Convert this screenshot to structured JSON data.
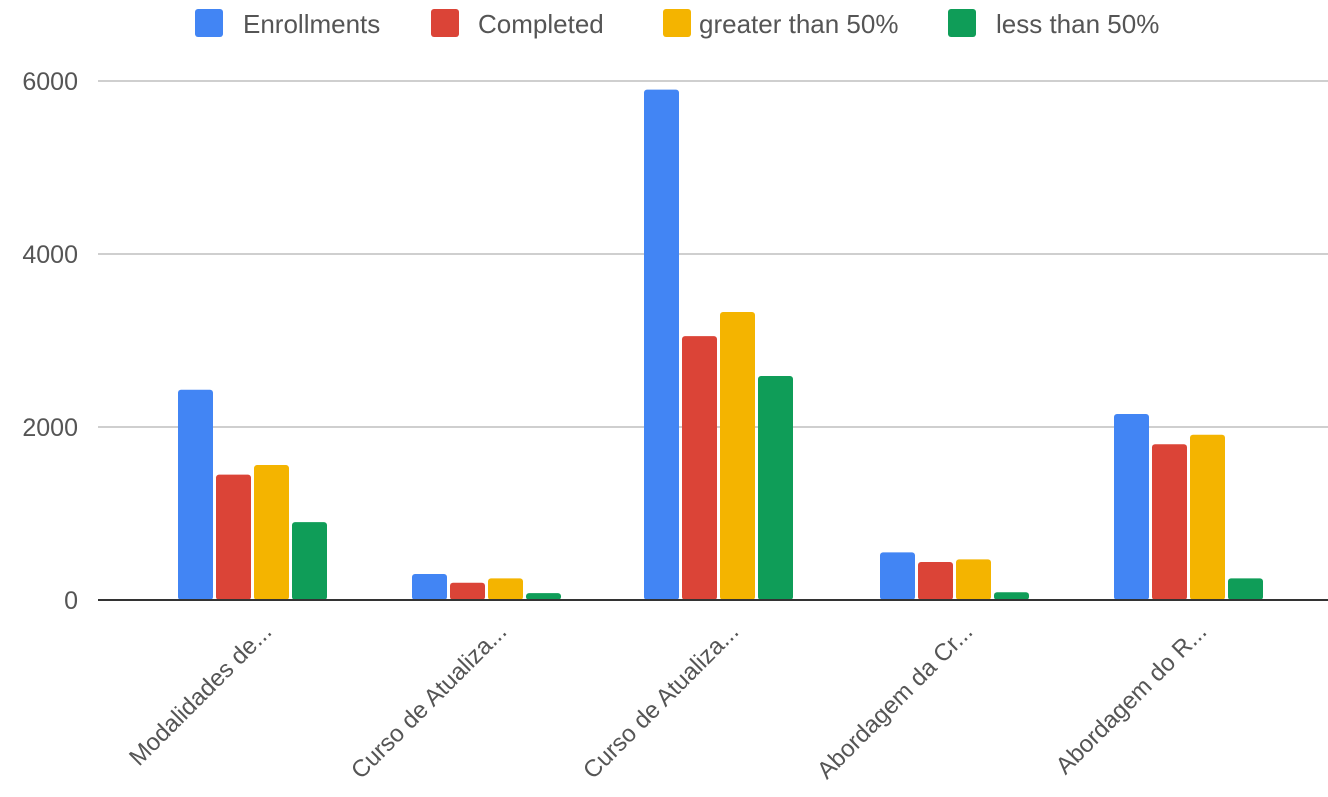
{
  "chart_data": {
    "type": "bar",
    "categories": [
      "Modalidades de...",
      "Curso de Atualiza...",
      "Curso de Atualiza...",
      "Abordagem da Cr...",
      "Abordagem do R..."
    ],
    "series": [
      {
        "name": "Enrollments",
        "color": "#4285F4",
        "values": [
          2430,
          300,
          5900,
          550,
          2150
        ]
      },
      {
        "name": "Completed",
        "color": "#DB4437",
        "values": [
          1450,
          200,
          3050,
          440,
          1800
        ]
      },
      {
        "name": "greater than 50%",
        "color": "#F4B400",
        "values": [
          1560,
          250,
          3330,
          470,
          1910
        ]
      },
      {
        "name": "less than 50%",
        "color": "#0F9D58",
        "values": [
          900,
          80,
          2590,
          90,
          250
        ]
      }
    ],
    "yticks": [
      0,
      2000,
      4000,
      6000
    ],
    "ylim": [
      0,
      6000
    ],
    "grid": true,
    "legend_position": "top"
  }
}
